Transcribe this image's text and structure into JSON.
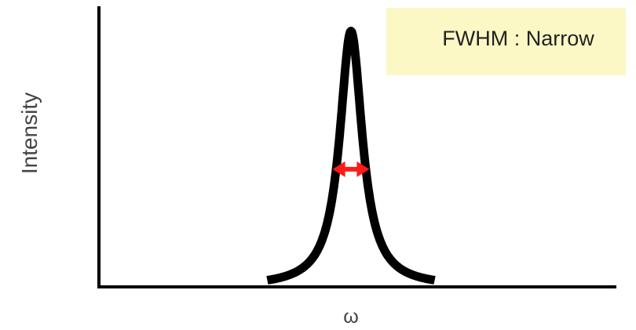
{
  "chart_data": {
    "type": "line",
    "title": "",
    "xlabel": "ω",
    "ylabel": "Intensity",
    "series": [
      {
        "shape": "lorentzian peak",
        "center": 0.0,
        "halfwidth": 0.09,
        "peak": 1.0,
        "x_range": [
          -0.55,
          0.55
        ]
      }
    ],
    "xlim": [
      -1.7,
      1.7
    ],
    "ylim": [
      0,
      1.06
    ],
    "grid": false,
    "annotations": [
      {
        "type": "double-arrow",
        "meaning": "FWHM",
        "color": "#ff1a1a",
        "y": 0.46,
        "x_from": -0.09,
        "x_to": 0.09
      }
    ]
  },
  "label_box": {
    "text": "FWHM : Narrow",
    "background": "#fbf8c5"
  },
  "colors": {
    "curve": "#000000",
    "axes": "#000000",
    "arrow": "#ff1a1a"
  }
}
